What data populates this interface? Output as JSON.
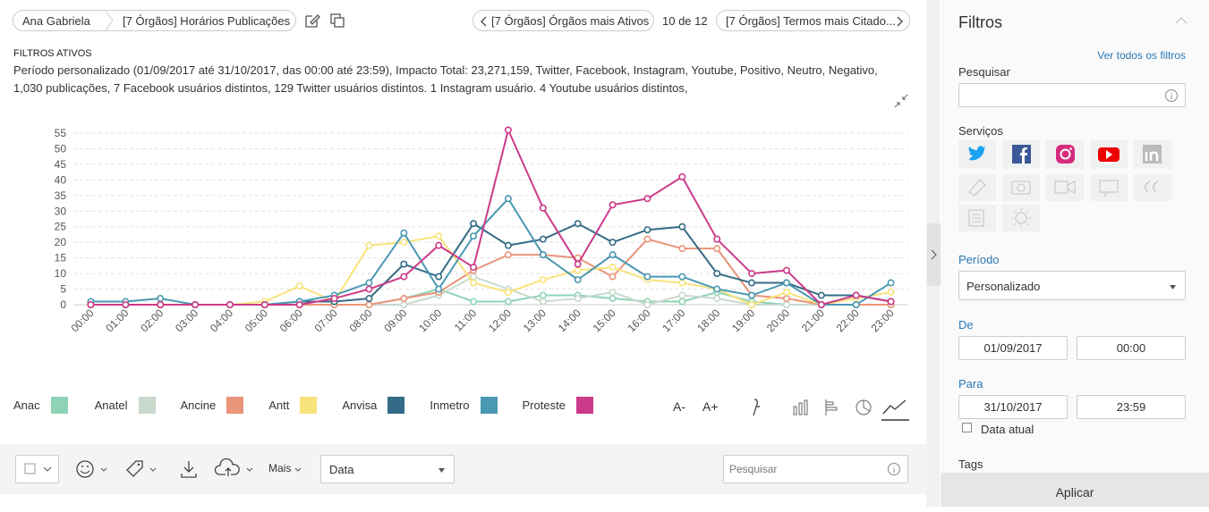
{
  "header": {
    "breadcrumb": [
      "Ana Gabriela",
      "[7 Órgãos] Horários Publicações"
    ],
    "previous": "[7 Órgãos] Órgãos mais Ativos",
    "position": "10 de 12",
    "next": "[7 Órgãos] Termos mais Citado..."
  },
  "filters": {
    "title": "FILTROS ATIVOS",
    "description": "Período personalizado (01/09/2017 até 31/10/2017, das 00:00 até 23:59), Impacto Total: 23,271,159, Twitter, Facebook, Instagram, Youtube, Positivo, Neutro, Negativo, 1,030 publicações, 7 Facebook usuários distintos, 129 Twitter usuários distintos. 1 Instagram usuário. 4 Youtube usuários distintos,"
  },
  "chart_data": {
    "type": "line",
    "grid": true,
    "categories": [
      "00:00",
      "01:00",
      "02:00",
      "03:00",
      "04:00",
      "05:00",
      "06:00",
      "07:00",
      "08:00",
      "09:00",
      "10:00",
      "11:00",
      "12:00",
      "13:00",
      "14:00",
      "15:00",
      "16:00",
      "17:00",
      "18:00",
      "19:00",
      "20:00",
      "21:00",
      "22:00",
      "23:00"
    ],
    "ylim": [
      0,
      57
    ],
    "yticks": [
      0,
      5,
      10,
      15,
      20,
      25,
      30,
      35,
      40,
      45,
      50,
      55
    ],
    "series": [
      {
        "name": "Anac",
        "color": "#8fd3b6",
        "values": [
          0,
          0,
          0,
          0,
          0,
          0,
          0,
          0,
          0,
          2,
          5,
          1,
          1,
          3,
          3,
          2,
          1,
          1,
          4,
          1,
          0,
          0,
          0,
          0
        ]
      },
      {
        "name": "Anatel",
        "color": "#c9d9cd",
        "values": [
          0,
          0,
          0,
          0,
          0,
          0,
          0,
          0,
          0,
          0,
          3,
          9,
          5,
          1,
          2,
          4,
          0,
          3,
          2,
          0,
          0,
          0,
          0,
          0
        ]
      },
      {
        "name": "Ancine",
        "color": "#e8957a",
        "values": [
          0,
          0,
          0,
          0,
          0,
          0,
          0,
          0,
          0,
          2,
          4,
          11,
          16,
          16,
          15,
          9,
          21,
          18,
          18,
          3,
          2,
          0,
          0,
          0
        ]
      },
      {
        "name": "Antt",
        "color": "#f8e37a",
        "values": [
          0,
          0,
          0,
          0,
          0,
          1,
          6,
          1,
          19,
          20,
          22,
          7,
          4,
          8,
          11,
          12,
          8,
          7,
          5,
          0,
          4,
          0,
          2,
          4
        ]
      },
      {
        "name": "Anvisa",
        "color": "#346b86",
        "values": [
          0,
          0,
          0,
          0,
          0,
          0,
          1,
          1,
          2,
          13,
          9,
          26,
          19,
          21,
          26,
          20,
          24,
          25,
          10,
          7,
          7,
          3,
          3,
          1
        ]
      },
      {
        "name": "Inmetro",
        "color": "#4a98b2",
        "values": [
          1,
          1,
          2,
          0,
          0,
          0,
          1,
          3,
          7,
          23,
          5,
          22,
          34,
          16,
          8,
          16,
          9,
          9,
          5,
          3,
          7,
          0,
          0,
          7
        ]
      },
      {
        "name": "Proteste",
        "color": "#cc3a8a",
        "values": [
          0,
          0,
          0,
          0,
          0,
          0,
          0,
          2,
          5,
          9,
          19,
          12,
          56,
          31,
          13,
          32,
          34,
          41,
          21,
          10,
          11,
          0,
          3,
          1
        ]
      }
    ]
  },
  "chart_controls": {
    "font_smaller": "A-",
    "font_larger": "A+"
  },
  "toolbar": {
    "more": "Mais",
    "sort": "Data",
    "search": "Pesquisar"
  },
  "sidebar": {
    "title": "Filtros",
    "see_all": "Ver todos os filtros",
    "search_label": "Pesquisar",
    "services_label": "Serviços",
    "period_label": "Período",
    "period_value": "Personalizado",
    "from_label": "De",
    "from_date": "01/09/2017",
    "from_time": "00:00",
    "to_label": "Para",
    "to_date": "31/10/2017",
    "to_time": "23:59",
    "current_date": "Data atual",
    "tags_label": "Tags",
    "apply": "Aplicar"
  }
}
